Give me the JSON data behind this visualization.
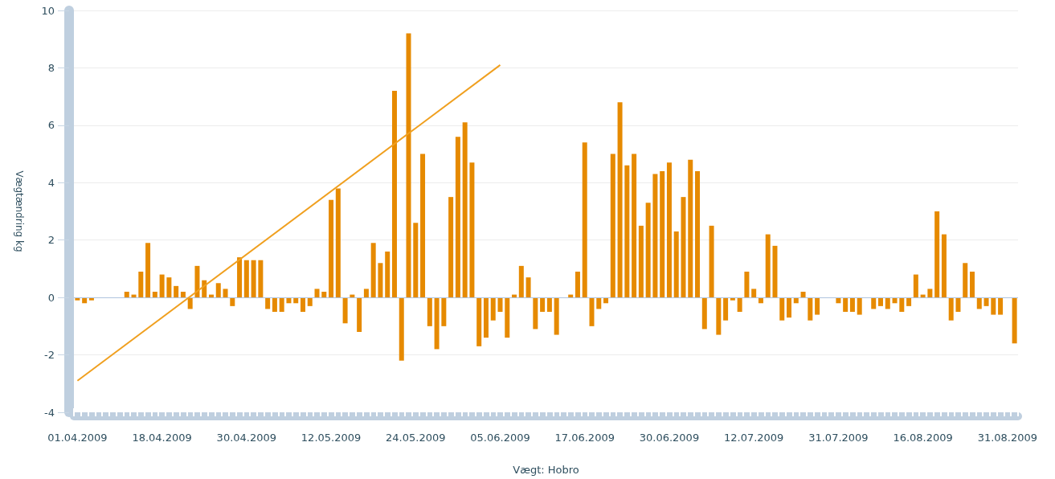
{
  "chart_data": {
    "type": "bar",
    "xlabel": "Vægt: Hobro",
    "ylabel": "Vægtændring kg",
    "categories": [
      "01.04.2009",
      null,
      null,
      null,
      null,
      null,
      null,
      null,
      null,
      null,
      null,
      null,
      "18.04.2009",
      null,
      null,
      null,
      null,
      null,
      null,
      null,
      null,
      null,
      null,
      null,
      "30.04.2009",
      null,
      null,
      null,
      null,
      null,
      null,
      null,
      null,
      null,
      null,
      null,
      "12.05.2009",
      null,
      null,
      null,
      null,
      null,
      null,
      null,
      null,
      null,
      null,
      null,
      "24.05.2009",
      null,
      null,
      null,
      null,
      null,
      null,
      null,
      null,
      null,
      null,
      null,
      "05.06.2009",
      null,
      null,
      null,
      null,
      null,
      null,
      null,
      null,
      null,
      null,
      null,
      "17.06.2009",
      null,
      null,
      null,
      null,
      null,
      null,
      null,
      null,
      null,
      null,
      null,
      "30.06.2009",
      null,
      null,
      null,
      null,
      null,
      null,
      null,
      null,
      null,
      null,
      null,
      "12.07.2009",
      null,
      null,
      null,
      null,
      null,
      null,
      null,
      null,
      null,
      null,
      null,
      "31.07.2009",
      null,
      null,
      null,
      null,
      null,
      null,
      null,
      null,
      null,
      null,
      null,
      "16.08.2009",
      null,
      null,
      null,
      null,
      null,
      null,
      null,
      null,
      null,
      null,
      null,
      "31.08.2009",
      null
    ],
    "series": [
      {
        "color": "#e68a00",
        "values": [
          -0.1,
          -0.2,
          -0.1,
          null,
          null,
          null,
          null,
          0.2,
          0.1,
          0.9,
          1.9,
          0.2,
          0.8,
          0.7,
          0.4,
          0.2,
          -0.4,
          1.1,
          0.6,
          0.1,
          0.5,
          0.3,
          -0.3,
          1.4,
          1.3,
          1.3,
          1.3,
          -0.4,
          -0.5,
          -0.5,
          -0.2,
          -0.2,
          -0.5,
          -0.3,
          0.3,
          0.2,
          3.4,
          3.8,
          -0.9,
          0.1,
          -1.2,
          0.3,
          1.9,
          1.2,
          1.6,
          7.2,
          -2.2,
          9.2,
          2.6,
          5.0,
          -1.0,
          -1.8,
          -1.0,
          3.5,
          5.6,
          6.1,
          4.7,
          -1.7,
          -1.4,
          -0.8,
          -0.5,
          -1.4,
          0.1,
          1.1,
          0.7,
          -1.1,
          -0.5,
          -0.5,
          -1.3,
          null,
          0.1,
          0.9,
          5.4,
          -1.0,
          -0.4,
          -0.2,
          5.0,
          6.8,
          4.6,
          5.0,
          2.5,
          3.3,
          4.3,
          4.4,
          4.7,
          2.3,
          3.5,
          4.8,
          4.4,
          -1.1,
          2.5,
          -1.3,
          -0.8,
          -0.1,
          -0.5,
          0.9,
          0.3,
          -0.2,
          2.2,
          1.8,
          -0.8,
          -0.7,
          -0.2,
          0.2,
          -0.8,
          -0.6,
          null,
          null,
          -0.2,
          -0.5,
          -0.5,
          -0.6,
          null,
          -0.4,
          -0.3,
          -0.4,
          -0.2,
          -0.5,
          -0.3,
          0.8,
          0.1,
          0.3,
          3.0,
          2.2,
          -0.8,
          -0.5,
          1.2,
          0.9,
          -0.4,
          -0.3,
          -0.6,
          -0.6,
          null,
          -1.6
        ]
      },
      {
        "type": "line",
        "color": "#f0a020",
        "x": [
          "01.04.2009",
          "24.05.2009",
          "05.06.2009"
        ],
        "values": [
          -2.9,
          5.9,
          8.1
        ]
      }
    ],
    "ylim": [
      -4,
      10
    ],
    "yticks": [
      -4,
      -2,
      0,
      2,
      4,
      6,
      8,
      10
    ],
    "grid": "y",
    "marker": "none",
    "ref_lines": [
      {
        "axis": "y",
        "value": 0,
        "color": "#b0c4de"
      }
    ]
  }
}
